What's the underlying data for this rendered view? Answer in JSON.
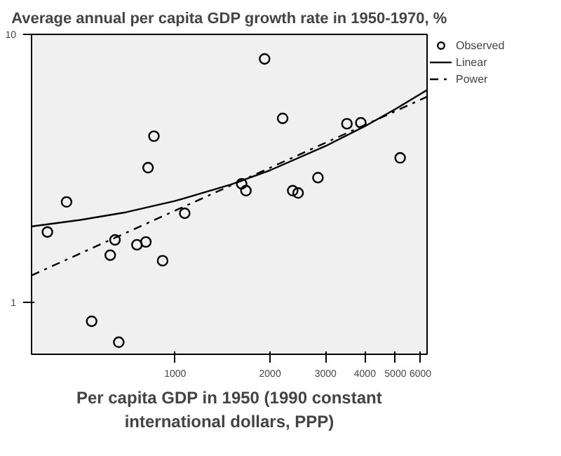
{
  "chart_data": {
    "type": "scatter",
    "title": "Average annual per capita GDP growth rate in 1950-1970, %",
    "xlabel": "Per capita GDP in 1950 (1990 constant international dollars, PPP)",
    "log": "xy",
    "xlim": [
      350,
      6300
    ],
    "ylim": [
      0.64,
      10
    ],
    "xticks": [
      1000,
      2000,
      3000,
      4000,
      5000,
      6000
    ],
    "yticks": [
      1,
      10
    ],
    "grid": false,
    "legend": "top right",
    "series": [
      {
        "name": "Observed",
        "color": "#000000",
        "marker": "circle",
        "x": [
          1922,
          2193,
          856,
          820,
          3508,
          3882,
          5175,
          2838,
          1625,
          1677,
          2360,
          2455,
          393,
          452,
          1072,
          644,
          622,
          756,
          807,
          912,
          543,
          662
        ],
        "values": [
          8.1,
          4.86,
          4.17,
          3.18,
          4.64,
          4.68,
          3.46,
          2.92,
          2.77,
          2.61,
          2.61,
          2.56,
          1.83,
          2.37,
          2.15,
          1.71,
          1.5,
          1.64,
          1.68,
          1.43,
          0.85,
          0.71
        ]
      },
      {
        "name": "Linear",
        "type": "line",
        "color": "#000000",
        "line_style": "solid",
        "x": [
          350,
          500,
          700,
          1000,
          1500,
          2000,
          3000,
          4000,
          5000,
          6300
        ],
        "values": [
          1.92,
          2.03,
          2.17,
          2.39,
          2.75,
          3.11,
          3.83,
          4.54,
          5.26,
          6.2
        ]
      },
      {
        "name": "Power",
        "type": "line",
        "color": "#000000",
        "line_style": "dashdot",
        "x": [
          350,
          1000,
          3000,
          6300
        ],
        "values": [
          1.26,
          2.2,
          3.94,
          5.85
        ]
      }
    ]
  }
}
